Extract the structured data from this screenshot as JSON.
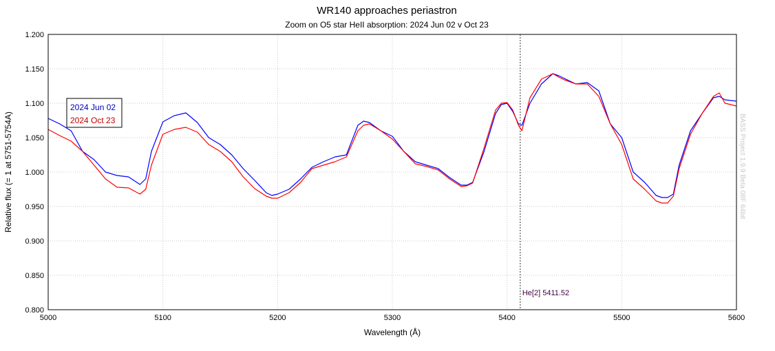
{
  "chart_data": {
    "type": "line",
    "title": "WR140 approaches periastron",
    "subtitle": "Zoom on O5 star HeII absorption: 2024 Jun 02 v Oct 23",
    "xlabel": "Wavelength (Å)",
    "ylabel": "Relative flux (= 1 at 5751-5754A)",
    "xlim": [
      5000,
      5600
    ],
    "ylim": [
      0.8,
      1.2
    ],
    "xticks": [
      "5000",
      "5100",
      "5200",
      "5300",
      "5400",
      "5500",
      "5600"
    ],
    "yticks": [
      "0.800",
      "0.850",
      "0.900",
      "0.950",
      "1.000",
      "1.050",
      "1.100",
      "1.150",
      "1.200"
    ],
    "grid": true,
    "legend_position": "left",
    "annotation": {
      "label": "He[2] 5411.52",
      "x": 5411.52,
      "color": "#400040"
    },
    "watermark": "BASS Project 1.9.9 Beta 08F 64bit",
    "series": [
      {
        "name": "2024 Jun 02",
        "color": "#0000ff",
        "x": [
          5000,
          5010,
          5020,
          5030,
          5040,
          5050,
          5060,
          5070,
          5080,
          5085,
          5090,
          5100,
          5110,
          5120,
          5130,
          5140,
          5150,
          5160,
          5170,
          5180,
          5190,
          5195,
          5200,
          5210,
          5220,
          5230,
          5240,
          5250,
          5260,
          5270,
          5275,
          5280,
          5290,
          5300,
          5310,
          5320,
          5330,
          5340,
          5350,
          5360,
          5365,
          5370,
          5380,
          5390,
          5395,
          5400,
          5405,
          5410,
          5413,
          5420,
          5430,
          5440,
          5445,
          5450,
          5460,
          5470,
          5480,
          5490,
          5500,
          5510,
          5520,
          5530,
          5535,
          5540,
          5545,
          5550,
          5560,
          5570,
          5580,
          5585,
          5590,
          5600
        ],
        "y": [
          1.078,
          1.07,
          1.06,
          1.03,
          1.018,
          1.0,
          0.995,
          0.993,
          0.982,
          0.99,
          1.03,
          1.073,
          1.082,
          1.086,
          1.072,
          1.05,
          1.04,
          1.025,
          1.005,
          0.988,
          0.97,
          0.966,
          0.968,
          0.975,
          0.99,
          1.007,
          1.015,
          1.022,
          1.025,
          1.068,
          1.074,
          1.072,
          1.06,
          1.052,
          1.03,
          1.015,
          1.01,
          1.005,
          0.992,
          0.981,
          0.981,
          0.985,
          1.03,
          1.085,
          1.098,
          1.1,
          1.088,
          1.07,
          1.068,
          1.1,
          1.128,
          1.143,
          1.14,
          1.136,
          1.128,
          1.13,
          1.118,
          1.07,
          1.05,
          1.0,
          0.985,
          0.966,
          0.963,
          0.963,
          0.968,
          1.01,
          1.06,
          1.085,
          1.108,
          1.11,
          1.105,
          1.103
        ]
      },
      {
        "name": "2024 Oct 23",
        "color": "#ff0000",
        "x": [
          5000,
          5010,
          5020,
          5030,
          5040,
          5050,
          5060,
          5070,
          5080,
          5085,
          5090,
          5100,
          5110,
          5120,
          5130,
          5140,
          5150,
          5160,
          5170,
          5180,
          5190,
          5195,
          5200,
          5210,
          5220,
          5230,
          5240,
          5250,
          5260,
          5270,
          5275,
          5280,
          5290,
          5300,
          5310,
          5320,
          5330,
          5340,
          5350,
          5360,
          5365,
          5370,
          5380,
          5390,
          5395,
          5400,
          5405,
          5410,
          5413,
          5420,
          5430,
          5440,
          5445,
          5450,
          5460,
          5470,
          5480,
          5490,
          5500,
          5510,
          5520,
          5530,
          5535,
          5540,
          5545,
          5550,
          5560,
          5570,
          5580,
          5585,
          5590,
          5600
        ],
        "y": [
          1.062,
          1.053,
          1.045,
          1.03,
          1.01,
          0.99,
          0.978,
          0.977,
          0.968,
          0.975,
          1.01,
          1.055,
          1.062,
          1.065,
          1.058,
          1.04,
          1.03,
          1.015,
          0.993,
          0.976,
          0.965,
          0.962,
          0.962,
          0.97,
          0.985,
          1.005,
          1.01,
          1.015,
          1.022,
          1.06,
          1.068,
          1.07,
          1.06,
          1.048,
          1.03,
          1.012,
          1.008,
          1.003,
          0.99,
          0.979,
          0.98,
          0.984,
          1.035,
          1.09,
          1.1,
          1.101,
          1.09,
          1.068,
          1.06,
          1.108,
          1.135,
          1.143,
          1.138,
          1.134,
          1.128,
          1.128,
          1.11,
          1.07,
          1.04,
          0.99,
          0.975,
          0.958,
          0.955,
          0.955,
          0.965,
          1.005,
          1.055,
          1.085,
          1.11,
          1.115,
          1.1,
          1.096
        ]
      }
    ]
  }
}
